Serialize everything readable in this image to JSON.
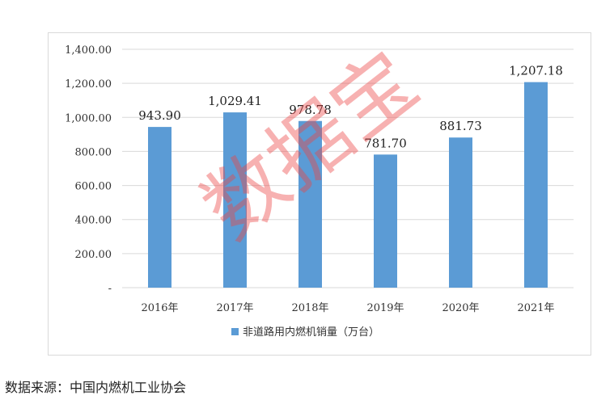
{
  "chart_data": {
    "type": "bar",
    "categories": [
      "2016年",
      "2017年",
      "2018年",
      "2019年",
      "2020年",
      "2021年"
    ],
    "series": [
      {
        "name": "非道路用内燃机销量（万台）",
        "values": [
          943.9,
          1029.41,
          978.78,
          781.7,
          881.73,
          1207.18
        ],
        "labels": [
          "943.90",
          "1,029.41",
          "978.78",
          "781.70",
          "881.73",
          "1,207.18"
        ],
        "color": "#5b9bd5"
      }
    ],
    "y_ticks": [
      {
        "value": 0,
        "label": "-"
      },
      {
        "value": 200,
        "label": "200.00"
      },
      {
        "value": 400,
        "label": "400.00"
      },
      {
        "value": 600,
        "label": "600.00"
      },
      {
        "value": 800,
        "label": "800.00"
      },
      {
        "value": 1000,
        "label": "1,000.00"
      },
      {
        "value": 1200,
        "label": "1,200.00"
      },
      {
        "value": 1400,
        "label": "1,400.00"
      }
    ],
    "ylim": [
      0,
      1400
    ],
    "grid": true,
    "legend_position": "bottom",
    "title": "",
    "xlabel": "",
    "ylabel": ""
  },
  "source_note": "数据来源：中国内燃机工业协会",
  "watermark": "数据宝"
}
